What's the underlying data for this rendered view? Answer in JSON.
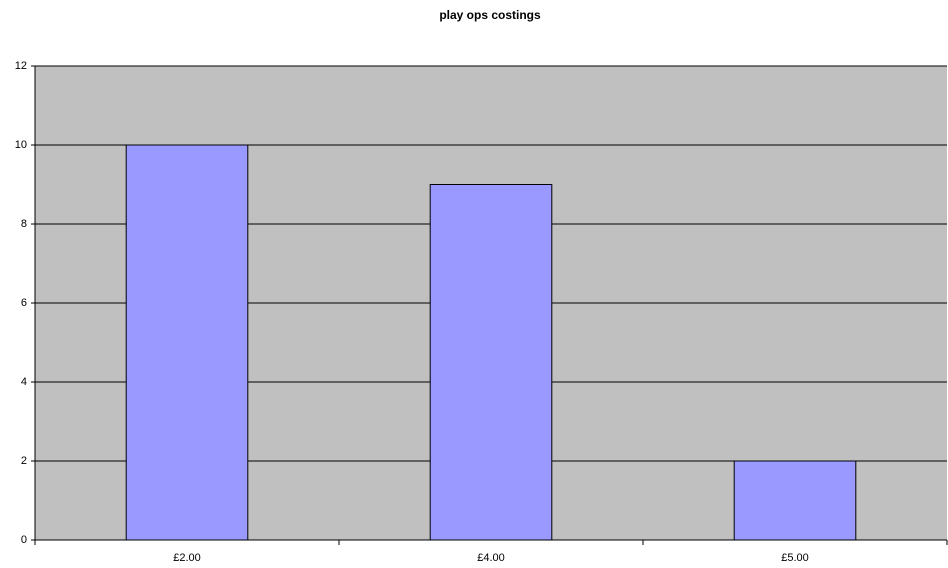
{
  "chart_data": {
    "type": "bar",
    "title": "play ops costings",
    "categories": [
      "£2.00",
      "£4.00",
      "£5.00"
    ],
    "values": [
      10,
      9,
      2
    ],
    "color": "#9999ff",
    "ylim": [
      0,
      12
    ],
    "yticks": [
      0,
      2,
      4,
      6,
      8,
      10,
      12
    ],
    "grid": true
  }
}
